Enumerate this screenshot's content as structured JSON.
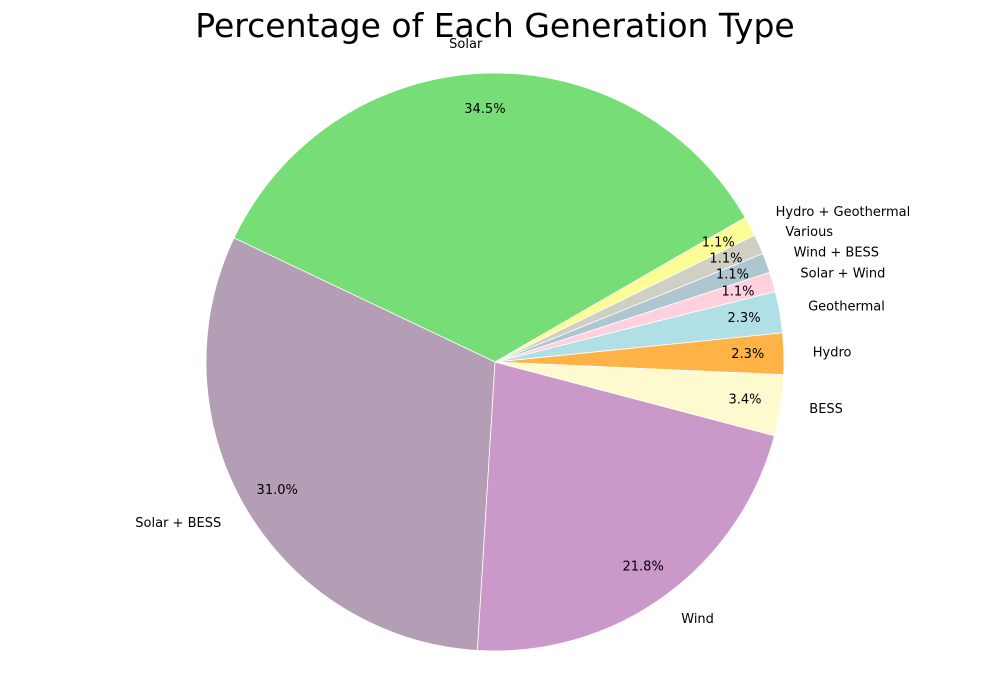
{
  "chart_data": {
    "type": "pie",
    "title": "Percentage of Each Generation Type",
    "start_angle_deg": 30,
    "counterclockwise": true,
    "slices": [
      {
        "label": "Solar",
        "value": 34.5,
        "display": "34.5%",
        "color": "#77dd77"
      },
      {
        "label": "Solar + BESS",
        "value": 31.0,
        "display": "31.0%",
        "color": "#b39eb5"
      },
      {
        "label": "Wind",
        "value": 21.8,
        "display": "21.8%",
        "color": "#cb99c9"
      },
      {
        "label": "BESS",
        "value": 3.4,
        "display": "3.4%",
        "color": "#fdfacf"
      },
      {
        "label": "Hydro",
        "value": 2.3,
        "display": "2.3%",
        "color": "#ffb347"
      },
      {
        "label": "Geothermal",
        "value": 2.3,
        "display": "2.3%",
        "color": "#b0dfe5"
      },
      {
        "label": "Solar + Wind",
        "value": 1.1,
        "display": "1.1%",
        "color": "#ffd1dc"
      },
      {
        "label": "Wind + BESS",
        "value": 1.1,
        "display": "1.1%",
        "color": "#aec6cf"
      },
      {
        "label": "Various",
        "value": 1.1,
        "display": "1.1%",
        "color": "#cfcfc4"
      },
      {
        "label": "Hydro + Geothermal",
        "value": 1.1,
        "display": "1.1%",
        "color": "#fdfd96"
      }
    ]
  }
}
